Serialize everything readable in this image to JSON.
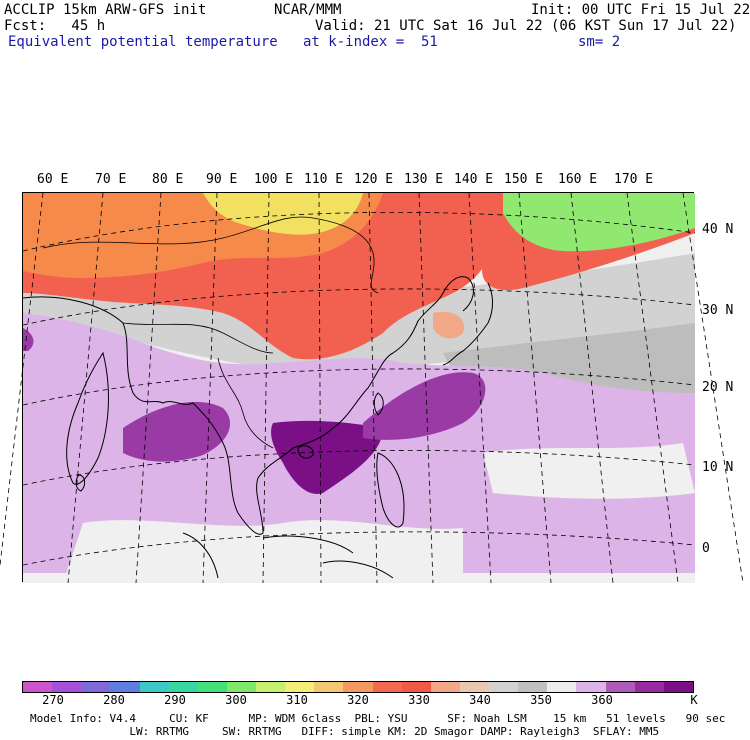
{
  "header": {
    "line1_left": "ACCLIP 15km ARW-GFS init",
    "line1_center": "NCAR/MMM",
    "line1_right": "Init: 00 UTC Fri 15 Jul 22",
    "line2_left": "Fcst:   45 h",
    "line2_right": "Valid: 21 UTC Sat 16 Jul 22 (06 KST Sun 17 Jul 22)",
    "line3_left": "Equivalent potential temperature",
    "line3_center": "at k-index =  51",
    "line3_right": "sm= 2"
  },
  "map": {
    "lon_labels": [
      "60 E",
      "70 E",
      "80 E",
      "90 E",
      "100 E",
      "110 E",
      "120 E",
      "130 E",
      "140 E",
      "150 E",
      "160 E",
      "170 E"
    ],
    "lat_labels": [
      "40 N",
      "30 N",
      "20 N",
      "10 N",
      "0"
    ],
    "colors": {
      "ocean_base": "#f0f0f0",
      "gray_350": "#d2d2d2",
      "gray_355": "#bdbdbd",
      "lilac_360": "#dcb4e8",
      "purple_365": "#9a3aa4",
      "purple_370": "#7a0f86",
      "red_330": "#f26050",
      "orange_325": "#f58a4a",
      "yellow_315": "#f2e060",
      "green_305": "#90e870",
      "salmon_340": "#f2a888"
    }
  },
  "colorbar": {
    "colors": [
      "#cc55cc",
      "#a64fd9",
      "#7f6ad9",
      "#5e7fe0",
      "#3ec8c8",
      "#38d6a0",
      "#46e07a",
      "#7ee868",
      "#c8f070",
      "#f4ee78",
      "#f4c870",
      "#f49a60",
      "#f26a50",
      "#f25a48",
      "#f2a888",
      "#e8c8b0",
      "#d2d2d2",
      "#c0c0c0",
      "#ececec",
      "#dcb4e8",
      "#b05aba",
      "#9a2aa0",
      "#7a0f86"
    ],
    "tick_labels": [
      "270",
      "280",
      "290",
      "300",
      "310",
      "320",
      "330",
      "340",
      "350",
      "360"
    ],
    "unit": "K"
  },
  "footer": {
    "line1": "Model Info: V4.4     CU: KF      MP: WDM 6class  PBL: YSU      SF: Noah LSM    15 km   51 levels   90 sec",
    "line2": "               LW: RRTMG     SW: RRTMG   DIFF: simple KM: 2D Smagor DAMP: Rayleigh3  SFLAY: MM5"
  }
}
